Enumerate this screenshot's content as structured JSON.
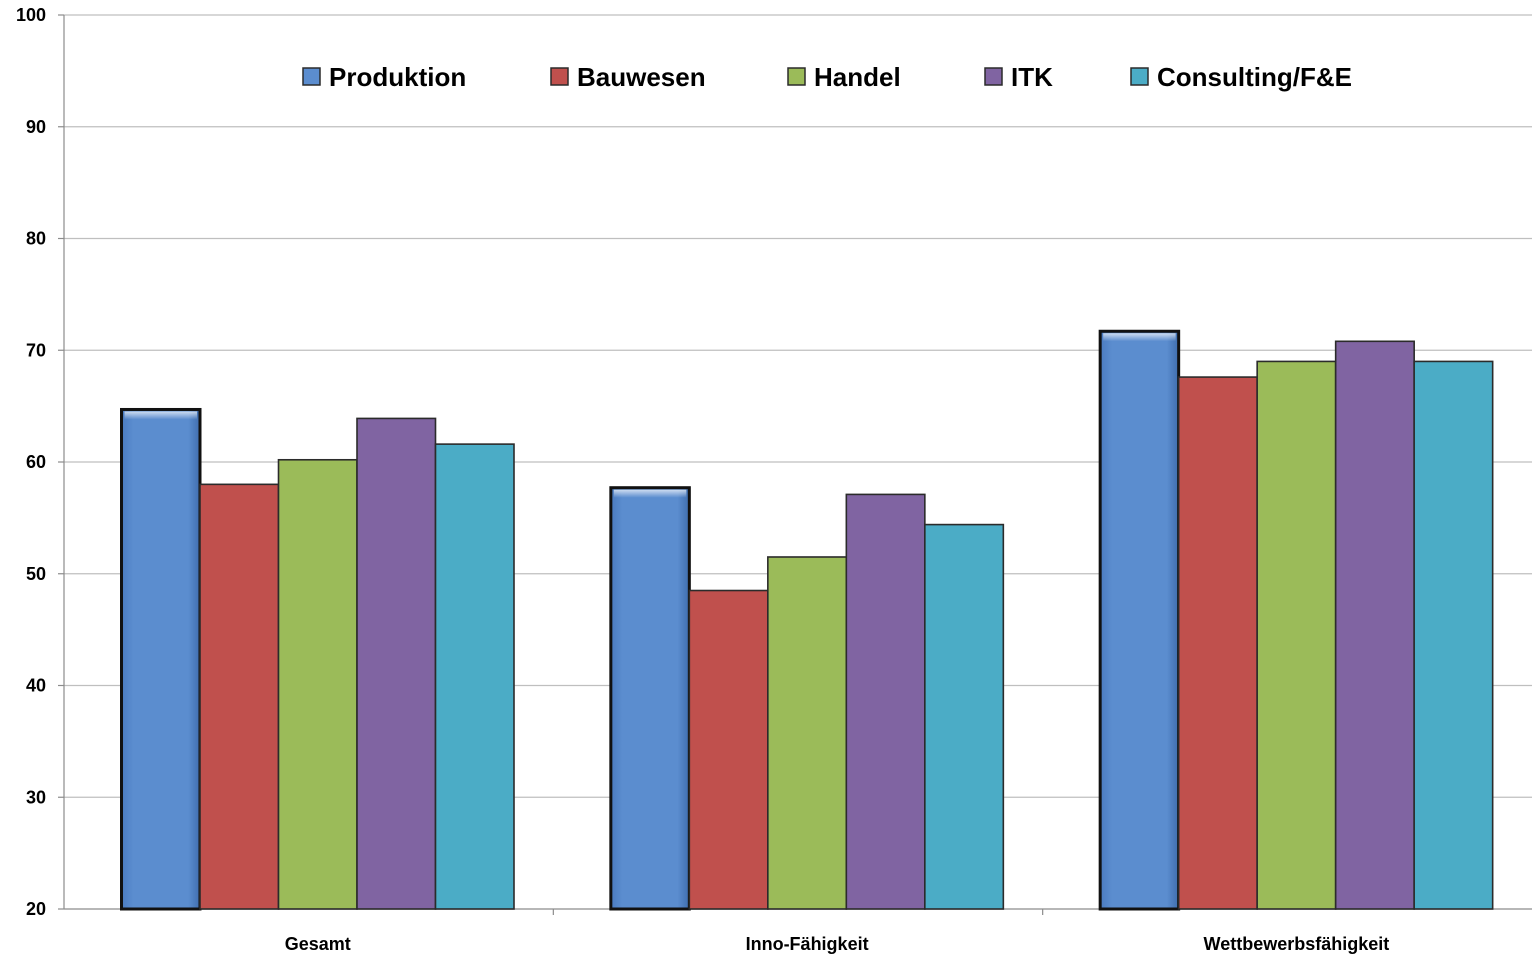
{
  "chart_data": {
    "type": "bar",
    "title": "",
    "xlabel": "",
    "ylabel": "",
    "categories": [
      "Gesamt",
      "Inno-Fähigkeit",
      "Wettbewerbsfähigkeit"
    ],
    "ylim": [
      20,
      100
    ],
    "yticks": [
      "20",
      "30",
      "40",
      "50",
      "60",
      "70",
      "80",
      "90",
      "100"
    ],
    "grid": true,
    "legend_position": "top",
    "series": [
      {
        "name": "Produktion",
        "color": "#5B8DCF",
        "values": [
          64.7,
          57.7,
          71.7
        ]
      },
      {
        "name": "Bauwesen",
        "color": "#C0504D",
        "values": [
          58.0,
          48.5,
          67.6
        ]
      },
      {
        "name": "Handel",
        "color": "#9BBB59",
        "values": [
          60.2,
          51.5,
          69.0
        ]
      },
      {
        "name": "ITK",
        "color": "#8064A2",
        "values": [
          63.9,
          57.1,
          70.8
        ]
      },
      {
        "name": "Consulting/F&E",
        "color": "#4BACC6",
        "values": [
          61.6,
          54.4,
          69.0
        ]
      }
    ]
  }
}
